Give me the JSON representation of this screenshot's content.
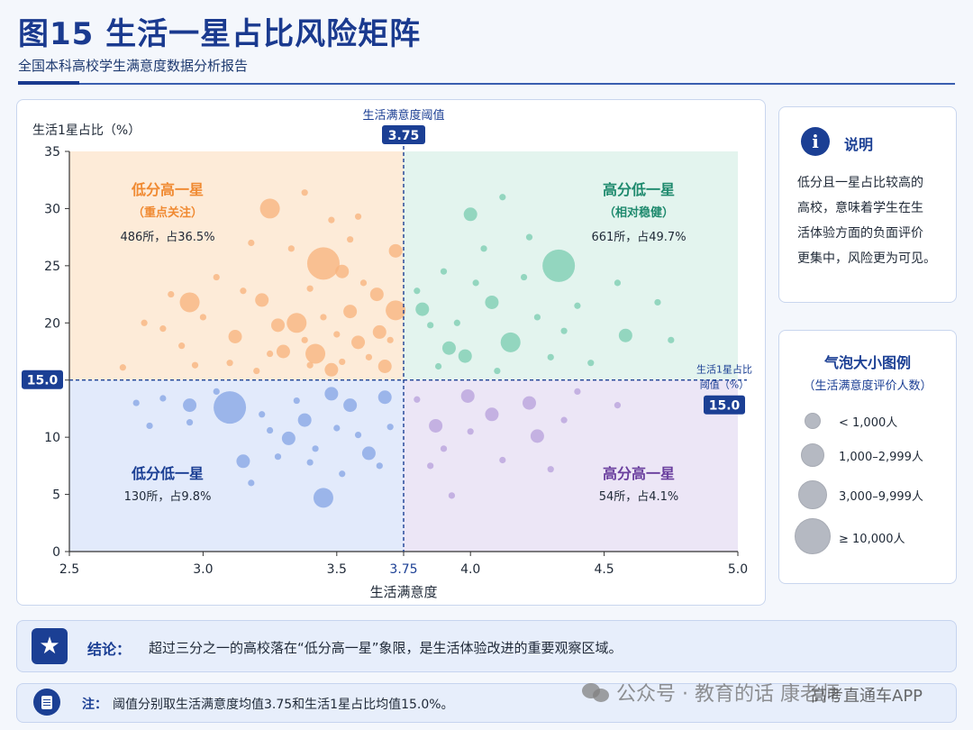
{
  "header": {
    "title": "图15 生活一星占比风险矩阵",
    "subtitle": "全国本科高校学生满意度数据分析报告"
  },
  "chart_data": {
    "type": "scatter",
    "xlabel": "生活满意度",
    "ylabel": "生活1星占比（%）",
    "xlim": [
      2.5,
      5.0
    ],
    "ylim": [
      0,
      35
    ],
    "xticks": [
      "2.5",
      "3.0",
      "3.5",
      "3.75",
      "4.0",
      "4.5",
      "5.0"
    ],
    "yticks": [
      "0",
      "5",
      "10",
      "15",
      "20",
      "25",
      "30",
      "35"
    ],
    "thresholds": {
      "x": {
        "value": 3.75,
        "label": "生活满意度阈值",
        "badge": "3.75"
      },
      "y": {
        "value": 15.0,
        "label_line1": "生活1星占比",
        "label_line2": "阈值（%）",
        "badge": "15.0",
        "left_badge": "15.0"
      }
    },
    "quadrants": [
      {
        "key": "low_high",
        "title": "低分高一星",
        "tag": "（重点关注）",
        "stat": "486所，占36.5%",
        "color": "#f08a32",
        "fill": "#fdebd8",
        "bubble": "#f7b47e"
      },
      {
        "key": "high_low",
        "title": "高分低一星",
        "tag": "（相对稳健）",
        "stat": "661所，占49.7%",
        "color": "#1f8a6e",
        "fill": "#e3f4ee",
        "bubble": "#7ccdb2"
      },
      {
        "key": "low_low",
        "title": "低分低一星",
        "tag": "",
        "stat": "130所，占9.8%",
        "color": "#1b3f94",
        "fill": "#e2eafb",
        "bubble": "#86a5e6"
      },
      {
        "key": "high_high",
        "title": "高分高一星",
        "tag": "",
        "stat": "54所，占4.1%",
        "color": "#6a3f9e",
        "fill": "#ece6f6",
        "bubble": "#b8a2dd"
      }
    ],
    "size_classes": [
      "<1,000人",
      "1,000–2,999人",
      "3,000–9,999人",
      "≥10,000人"
    ],
    "points_note": "representative sample of bubbles; x = 生活满意度, y = 生活1星占比(%), s = size class 0-3",
    "points": [
      {
        "x": 3.25,
        "y": 30.0,
        "s": 2
      },
      {
        "x": 3.45,
        "y": 25.2,
        "s": 3
      },
      {
        "x": 3.35,
        "y": 20.0,
        "s": 2
      },
      {
        "x": 3.42,
        "y": 17.3,
        "s": 2
      },
      {
        "x": 2.95,
        "y": 21.8,
        "s": 2
      },
      {
        "x": 3.72,
        "y": 21.1,
        "s": 2
      },
      {
        "x": 3.72,
        "y": 26.3,
        "s": 1
      },
      {
        "x": 3.22,
        "y": 22.0,
        "s": 1
      },
      {
        "x": 3.28,
        "y": 19.8,
        "s": 1
      },
      {
        "x": 3.3,
        "y": 17.5,
        "s": 1
      },
      {
        "x": 3.52,
        "y": 24.5,
        "s": 1
      },
      {
        "x": 3.55,
        "y": 21.0,
        "s": 1
      },
      {
        "x": 3.58,
        "y": 18.3,
        "s": 1
      },
      {
        "x": 3.65,
        "y": 22.5,
        "s": 1
      },
      {
        "x": 3.66,
        "y": 19.2,
        "s": 1
      },
      {
        "x": 3.68,
        "y": 16.2,
        "s": 1
      },
      {
        "x": 3.48,
        "y": 15.9,
        "s": 1
      },
      {
        "x": 3.12,
        "y": 18.8,
        "s": 1
      },
      {
        "x": 3.1,
        "y": 16.5,
        "s": 0
      },
      {
        "x": 3.0,
        "y": 20.5,
        "s": 0
      },
      {
        "x": 2.92,
        "y": 18.0,
        "s": 0
      },
      {
        "x": 2.85,
        "y": 19.5,
        "s": 0
      },
      {
        "x": 2.97,
        "y": 16.3,
        "s": 0
      },
      {
        "x": 3.38,
        "y": 31.4,
        "s": 0
      },
      {
        "x": 3.48,
        "y": 29.0,
        "s": 0
      },
      {
        "x": 3.55,
        "y": 27.3,
        "s": 0
      },
      {
        "x": 3.18,
        "y": 27.0,
        "s": 0
      },
      {
        "x": 3.33,
        "y": 26.5,
        "s": 0
      },
      {
        "x": 3.4,
        "y": 23.0,
        "s": 0
      },
      {
        "x": 3.6,
        "y": 23.5,
        "s": 0
      },
      {
        "x": 3.45,
        "y": 20.5,
        "s": 0
      },
      {
        "x": 3.5,
        "y": 19.0,
        "s": 0
      },
      {
        "x": 3.38,
        "y": 18.5,
        "s": 0
      },
      {
        "x": 3.25,
        "y": 17.3,
        "s": 0
      },
      {
        "x": 3.62,
        "y": 17.0,
        "s": 0
      },
      {
        "x": 3.7,
        "y": 18.5,
        "s": 0
      },
      {
        "x": 3.58,
        "y": 29.3,
        "s": 0
      },
      {
        "x": 3.05,
        "y": 24.0,
        "s": 0
      },
      {
        "x": 3.15,
        "y": 22.8,
        "s": 0
      },
      {
        "x": 2.7,
        "y": 16.1,
        "s": 0
      },
      {
        "x": 2.78,
        "y": 20.0,
        "s": 0
      },
      {
        "x": 2.88,
        "y": 22.5,
        "s": 0
      },
      {
        "x": 3.52,
        "y": 16.6,
        "s": 0
      },
      {
        "x": 3.4,
        "y": 16.3,
        "s": 0
      },
      {
        "x": 3.2,
        "y": 15.8,
        "s": 0
      },
      {
        "x": 4.33,
        "y": 25.0,
        "s": 3
      },
      {
        "x": 4.15,
        "y": 18.3,
        "s": 2
      },
      {
        "x": 4.08,
        "y": 21.8,
        "s": 1
      },
      {
        "x": 3.92,
        "y": 17.8,
        "s": 1
      },
      {
        "x": 4.0,
        "y": 29.5,
        "s": 1
      },
      {
        "x": 4.58,
        "y": 18.9,
        "s": 1
      },
      {
        "x": 3.98,
        "y": 17.1,
        "s": 1
      },
      {
        "x": 3.82,
        "y": 21.2,
        "s": 1
      },
      {
        "x": 3.9,
        "y": 24.5,
        "s": 0
      },
      {
        "x": 4.02,
        "y": 23.5,
        "s": 0
      },
      {
        "x": 4.2,
        "y": 24.0,
        "s": 0
      },
      {
        "x": 4.25,
        "y": 20.5,
        "s": 0
      },
      {
        "x": 4.4,
        "y": 21.5,
        "s": 0
      },
      {
        "x": 4.1,
        "y": 15.8,
        "s": 0
      },
      {
        "x": 3.88,
        "y": 16.2,
        "s": 0
      },
      {
        "x": 4.3,
        "y": 17.0,
        "s": 0
      },
      {
        "x": 4.45,
        "y": 16.5,
        "s": 0
      },
      {
        "x": 3.85,
        "y": 19.8,
        "s": 0
      },
      {
        "x": 4.05,
        "y": 26.5,
        "s": 0
      },
      {
        "x": 4.55,
        "y": 23.5,
        "s": 0
      },
      {
        "x": 4.12,
        "y": 31.0,
        "s": 0
      },
      {
        "x": 4.7,
        "y": 21.8,
        "s": 0
      },
      {
        "x": 4.75,
        "y": 18.5,
        "s": 0
      },
      {
        "x": 3.8,
        "y": 22.8,
        "s": 0
      },
      {
        "x": 4.22,
        "y": 27.5,
        "s": 0
      },
      {
        "x": 3.95,
        "y": 20.0,
        "s": 0
      },
      {
        "x": 4.35,
        "y": 19.3,
        "s": 0
      },
      {
        "x": 3.1,
        "y": 12.6,
        "s": 3
      },
      {
        "x": 3.45,
        "y": 4.7,
        "s": 2
      },
      {
        "x": 3.32,
        "y": 9.9,
        "s": 1
      },
      {
        "x": 3.62,
        "y": 8.6,
        "s": 1
      },
      {
        "x": 3.55,
        "y": 12.8,
        "s": 1
      },
      {
        "x": 3.68,
        "y": 13.5,
        "s": 1
      },
      {
        "x": 3.38,
        "y": 11.5,
        "s": 1
      },
      {
        "x": 3.48,
        "y": 13.8,
        "s": 1
      },
      {
        "x": 3.15,
        "y": 7.9,
        "s": 1
      },
      {
        "x": 2.95,
        "y": 12.8,
        "s": 1
      },
      {
        "x": 2.8,
        "y": 11.0,
        "s": 0
      },
      {
        "x": 2.85,
        "y": 13.4,
        "s": 0
      },
      {
        "x": 2.75,
        "y": 13.0,
        "s": 0
      },
      {
        "x": 2.95,
        "y": 11.3,
        "s": 0
      },
      {
        "x": 3.25,
        "y": 10.6,
        "s": 0
      },
      {
        "x": 3.28,
        "y": 8.3,
        "s": 0
      },
      {
        "x": 3.22,
        "y": 12.0,
        "s": 0
      },
      {
        "x": 3.4,
        "y": 7.8,
        "s": 0
      },
      {
        "x": 3.5,
        "y": 10.8,
        "s": 0
      },
      {
        "x": 3.58,
        "y": 10.2,
        "s": 0
      },
      {
        "x": 3.35,
        "y": 13.2,
        "s": 0
      },
      {
        "x": 3.42,
        "y": 9.0,
        "s": 0
      },
      {
        "x": 3.7,
        "y": 10.9,
        "s": 0
      },
      {
        "x": 3.66,
        "y": 7.5,
        "s": 0
      },
      {
        "x": 3.18,
        "y": 6.0,
        "s": 0
      },
      {
        "x": 3.52,
        "y": 6.8,
        "s": 0
      },
      {
        "x": 3.05,
        "y": 14.0,
        "s": 0
      },
      {
        "x": 4.25,
        "y": 10.1,
        "s": 1
      },
      {
        "x": 3.87,
        "y": 11.0,
        "s": 1
      },
      {
        "x": 3.99,
        "y": 13.6,
        "s": 1
      },
      {
        "x": 4.08,
        "y": 12.0,
        "s": 1
      },
      {
        "x": 4.22,
        "y": 13.0,
        "s": 1
      },
      {
        "x": 3.8,
        "y": 13.3,
        "s": 0
      },
      {
        "x": 3.9,
        "y": 9.0,
        "s": 0
      },
      {
        "x": 3.93,
        "y": 4.9,
        "s": 0
      },
      {
        "x": 4.0,
        "y": 10.5,
        "s": 0
      },
      {
        "x": 4.12,
        "y": 8.0,
        "s": 0
      },
      {
        "x": 4.35,
        "y": 11.5,
        "s": 0
      },
      {
        "x": 4.4,
        "y": 14.0,
        "s": 0
      },
      {
        "x": 4.3,
        "y": 7.2,
        "s": 0
      },
      {
        "x": 4.55,
        "y": 12.8,
        "s": 0
      },
      {
        "x": 3.85,
        "y": 7.5,
        "s": 0
      }
    ]
  },
  "info_box": {
    "title": "说明",
    "icon": "info-icon",
    "lines": [
      "低分且一星占比较高的",
      "高校，意味着学生在生",
      "活体验方面的负面评价",
      "更集中，风险更为可见。"
    ]
  },
  "legend": {
    "title": "气泡大小图例",
    "subtitle": "（生活满意度评价人数）",
    "items": [
      "< 1,000人",
      "1,000–2,999人",
      "3,000–9,999人",
      "≥ 10,000人"
    ]
  },
  "conclusion": {
    "icon": "star-icon",
    "label": "结论：",
    "text": "超过三分之一的高校落在“低分高一星”象限，是生活体验改进的重要观察区域。"
  },
  "note": {
    "icon": "document-icon",
    "label": "注：",
    "text": "阈值分别取生活满意度均值3.75和生活1星占比均值15.0%。"
  },
  "watermark": {
    "text": "公众号 · 教育的话 康老师",
    "brand": "高考直通车APP"
  }
}
